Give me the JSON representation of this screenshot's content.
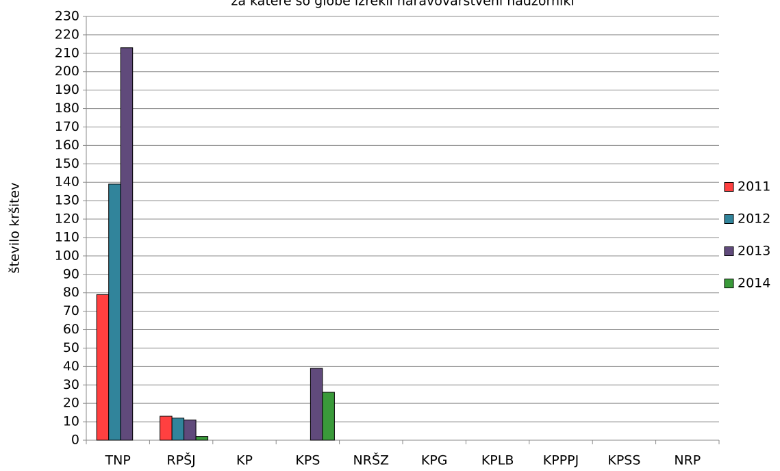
{
  "chart_data": {
    "type": "bar",
    "title": "za katere so globe izrekli naravovarstveni nadzorniki",
    "y_label": "število kršitev",
    "categories": [
      "TNP",
      "RPŠJ",
      "KP",
      "KPS",
      "NRŠZ",
      "KPG",
      "KPLB",
      "KPPPJ",
      "KPSS",
      "NRP"
    ],
    "series": [
      {
        "name": "2011",
        "color": "#ff4040",
        "values": [
          79,
          13,
          0,
          0,
          0,
          0,
          0,
          0,
          0,
          0
        ]
      },
      {
        "name": "2012",
        "color": "#31849b",
        "values": [
          139,
          12,
          0,
          0,
          0,
          0,
          0,
          0,
          0,
          0
        ]
      },
      {
        "name": "2013",
        "color": "#604a7b",
        "values": [
          213,
          11,
          0,
          39,
          0,
          0,
          0,
          0,
          0,
          0
        ]
      },
      {
        "name": "2014",
        "color": "#3a9a3a",
        "values": [
          0,
          2,
          0,
          26,
          0,
          0,
          0,
          0,
          0,
          0
        ]
      }
    ],
    "ylim": [
      0,
      230
    ],
    "yticks": [
      0,
      10,
      20,
      30,
      40,
      50,
      60,
      70,
      80,
      90,
      100,
      110,
      120,
      130,
      140,
      150,
      160,
      170,
      180,
      190,
      200,
      210,
      220,
      230
    ],
    "grid": true,
    "legend": "right"
  }
}
